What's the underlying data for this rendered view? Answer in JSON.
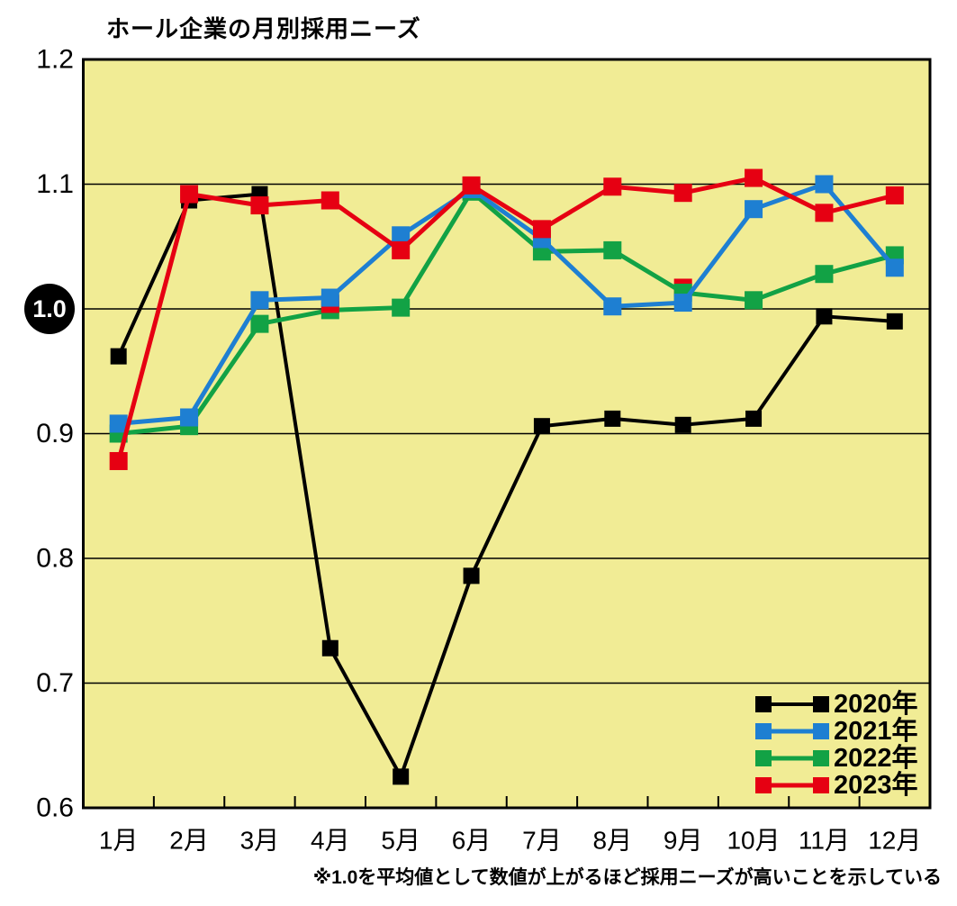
{
  "footnote": "※1.0を平均値として数値が上がるほど採用ニーズが高いことを示している",
  "chart_data": {
    "type": "line",
    "title": "ホール企業の月別採用ニーズ",
    "categories": [
      "1月",
      "2月",
      "3月",
      "4月",
      "5月",
      "6月",
      "7月",
      "8月",
      "9月",
      "10月",
      "11月",
      "12月"
    ],
    "series": [
      {
        "name": "2020年",
        "color": "#000000",
        "values": [
          0.962,
          1.087,
          1.092,
          0.728,
          0.625,
          0.786,
          0.906,
          0.912,
          0.907,
          0.912,
          0.994,
          0.99
        ]
      },
      {
        "name": "2021年",
        "color": "#1E7FD2",
        "values": [
          0.908,
          0.913,
          1.007,
          1.009,
          1.059,
          1.096,
          1.056,
          1.002,
          1.005,
          1.08,
          1.1,
          1.033
        ]
      },
      {
        "name": "2022年",
        "color": "#12A245",
        "values": [
          0.9,
          0.906,
          0.988,
          0.999,
          1.001,
          1.094,
          1.046,
          1.047,
          1.013,
          1.007,
          1.028,
          1.043
        ]
      },
      {
        "name": "2023年",
        "color": "#E60012",
        "values": [
          0.878,
          1.092,
          1.083,
          1.087,
          1.047,
          1.099,
          1.064,
          1.098,
          1.093,
          1.105,
          1.077,
          1.091
        ]
      }
    ],
    "xlabel": "",
    "ylabel": "",
    "ylim": [
      0.6,
      1.2
    ],
    "yticks": [
      0.6,
      0.7,
      0.8,
      0.9,
      1.0,
      1.1,
      1.2
    ],
    "highlighted_ytick": 1.0,
    "grid": "horizontal",
    "legend_position": "inside-bottom-right",
    "plot_bg": "#F1EC95",
    "stray_markers": [
      {
        "id": "stray-4",
        "month": "4月",
        "value": 1.004,
        "color": "#E60012"
      },
      {
        "id": "stray-9",
        "month": "9月",
        "value": 1.017,
        "color": "#E60012"
      }
    ],
    "draw_sequence": [
      "2020年",
      "stray-9",
      "2022年",
      "stray-4",
      "2021年",
      "2023年"
    ]
  }
}
